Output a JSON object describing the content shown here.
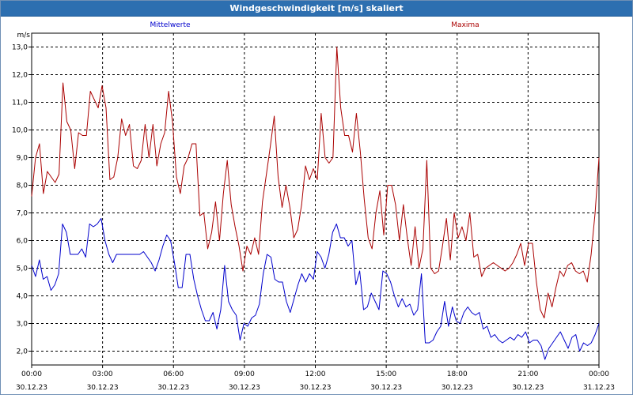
{
  "window": {
    "title": "Windgeschwindigkeit [m/s] skaliert"
  },
  "colors": {
    "series_mean": "#0000cc",
    "series_max": "#aa0000",
    "grid": "#000000",
    "titlebar": "#2d6fb0"
  },
  "chart_data": {
    "type": "line",
    "title": "Windgeschwindigkeit [m/s] skaliert",
    "ylabel": "m/s",
    "xlabel": "",
    "ylim": [
      1.5,
      13.5
    ],
    "xlim": [
      0,
      24
    ],
    "grid": true,
    "y_ticks": [
      "2,0",
      "3,0",
      "4,0",
      "5,0",
      "6,0",
      "7,0",
      "8,0",
      "9,0",
      "10,0",
      "11,0",
      "12,0",
      "13,0"
    ],
    "x_ticks": [
      {
        "time": "00:00",
        "date": "30.12.23"
      },
      {
        "time": "03:00",
        "date": "30.12.23"
      },
      {
        "time": "06:00",
        "date": "30.12.23"
      },
      {
        "time": "09:00",
        "date": "30.12.23"
      },
      {
        "time": "12:00",
        "date": "30.12.23"
      },
      {
        "time": "15:00",
        "date": "30.12.23"
      },
      {
        "time": "18:00",
        "date": "30.12.23"
      },
      {
        "time": "21:00",
        "date": "30.12.23"
      },
      {
        "time": "00:00",
        "date": "31.12.23"
      }
    ],
    "series": [
      {
        "name": "Mittelwerte",
        "color": "#0000cc",
        "values": [
          5.1,
          4.7,
          5.3,
          4.6,
          4.7,
          4.2,
          4.4,
          4.8,
          6.6,
          6.3,
          5.5,
          5.5,
          5.5,
          5.7,
          5.4,
          6.6,
          6.5,
          6.6,
          6.8,
          6.0,
          5.5,
          5.2,
          5.5,
          5.5,
          5.5,
          5.5,
          5.5,
          5.5,
          5.5,
          5.6,
          5.4,
          5.2,
          4.9,
          5.3,
          5.8,
          6.2,
          6.0,
          5.2,
          4.3,
          4.3,
          5.5,
          5.5,
          4.6,
          4.0,
          3.5,
          3.1,
          3.1,
          3.4,
          2.8,
          3.5,
          5.1,
          3.8,
          3.5,
          3.3,
          2.4,
          3.0,
          2.9,
          3.2,
          3.3,
          3.7,
          4.8,
          5.5,
          5.4,
          4.6,
          4.5,
          4.5,
          3.8,
          3.4,
          3.9,
          4.4,
          4.8,
          4.5,
          4.8,
          4.6,
          5.6,
          5.4,
          5.0,
          5.5,
          6.3,
          6.6,
          6.1,
          6.1,
          5.8,
          6.0,
          4.4,
          4.9,
          3.5,
          3.6,
          4.1,
          3.8,
          3.5,
          4.9,
          4.8,
          4.5,
          4.0,
          3.6,
          3.9,
          3.6,
          3.7,
          3.3,
          3.5,
          4.8,
          2.3,
          2.3,
          2.4,
          2.7,
          2.9,
          3.8,
          2.9,
          3.6,
          3.1,
          3.0,
          3.4,
          3.6,
          3.4,
          3.3,
          3.4,
          2.8,
          2.9,
          2.5,
          2.6,
          2.4,
          2.3,
          2.4,
          2.5,
          2.4,
          2.6,
          2.5,
          2.7,
          2.3,
          2.4,
          2.4,
          2.2,
          1.7,
          2.1,
          2.3,
          2.5,
          2.7,
          2.4,
          2.1,
          2.5,
          2.6,
          2.0,
          2.3,
          2.2,
          2.3,
          2.6,
          3.0
        ]
      },
      {
        "name": "Maxima",
        "color": "#aa0000",
        "values": [
          7.6,
          9.0,
          9.5,
          7.7,
          8.5,
          8.3,
          8.1,
          8.4,
          11.7,
          10.3,
          10.0,
          8.6,
          9.9,
          9.8,
          9.8,
          11.4,
          11.1,
          10.8,
          11.6,
          10.8,
          8.2,
          8.3,
          9.0,
          10.4,
          9.8,
          10.2,
          8.7,
          8.6,
          8.9,
          10.2,
          9.0,
          10.2,
          8.7,
          9.5,
          9.9,
          11.4,
          10.3,
          8.3,
          7.7,
          8.7,
          9.0,
          9.5,
          9.5,
          6.9,
          7.0,
          5.7,
          6.3,
          7.4,
          6.0,
          7.7,
          8.9,
          7.3,
          6.5,
          5.8,
          4.9,
          5.8,
          5.5,
          6.1,
          5.5,
          7.4,
          8.4,
          9.4,
          10.5,
          8.3,
          7.2,
          8.0,
          7.2,
          6.1,
          6.4,
          7.3,
          8.7,
          8.2,
          8.6,
          8.2,
          10.6,
          9.0,
          8.8,
          9.0,
          13.0,
          10.8,
          9.8,
          9.8,
          9.2,
          10.6,
          9.2,
          7.5,
          6.1,
          5.7,
          7.0,
          7.8,
          6.2,
          8.0,
          8.0,
          7.3,
          6.0,
          7.3,
          6.1,
          5.1,
          6.5,
          5.0,
          5.7,
          8.9,
          5.0,
          4.8,
          4.9,
          5.8,
          6.8,
          5.3,
          7.0,
          6.1,
          6.5,
          6.0,
          7.0,
          5.4,
          5.5,
          4.7,
          5.0,
          5.1,
          5.2,
          5.1,
          5.0,
          4.9,
          5.0,
          5.2,
          5.5,
          5.9,
          5.1,
          5.9,
          5.9,
          4.5,
          3.5,
          3.2,
          4.1,
          3.6,
          4.3,
          4.9,
          4.7,
          5.1,
          5.2,
          4.9,
          4.8,
          4.9,
          4.5,
          5.5,
          7.0,
          9.0
        ]
      }
    ]
  }
}
